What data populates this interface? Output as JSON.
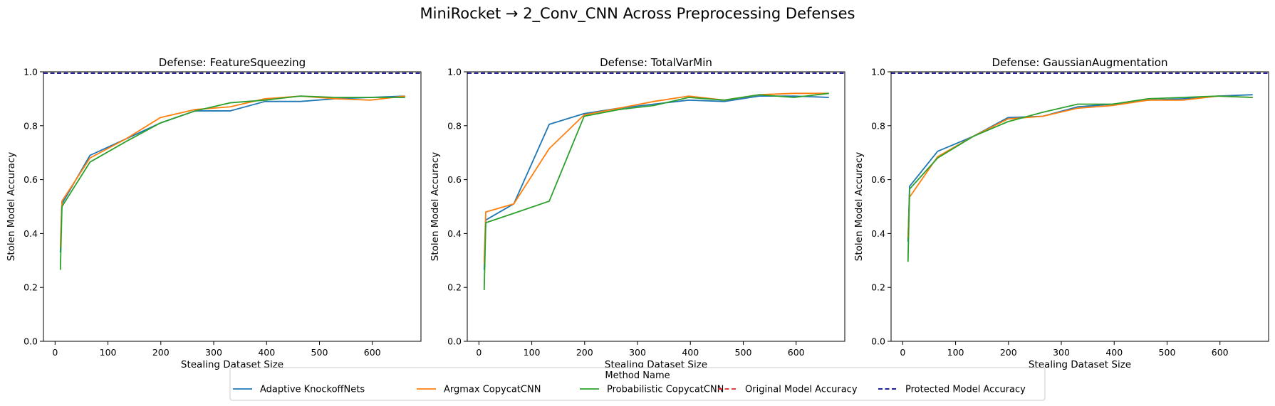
{
  "figure": {
    "suptitle": "MiniRocket → 2_Conv_CNN Across Preprocessing Defenses"
  },
  "colors": {
    "Adaptive KnockoffNets": "#1f77b4",
    "Argmax CopycatCNN": "#ff7f0e",
    "Probabilistic CopycatCNN": "#2ca02c",
    "Original Model Accuracy": "#d62728",
    "Protected Model Accuracy": "#00008b"
  },
  "legend": {
    "title": "Method Name",
    "placement": "bottom-center",
    "entries": [
      {
        "label": "Adaptive KnockoffNets",
        "style": "solid"
      },
      {
        "label": "Argmax CopycatCNN",
        "style": "solid"
      },
      {
        "label": "Probabilistic CopycatCNN",
        "style": "solid"
      },
      {
        "label": "Original Model Accuracy",
        "style": "dashed"
      },
      {
        "label": "Protected Model Accuracy",
        "style": "dashed"
      }
    ]
  },
  "chart_data": [
    {
      "type": "line",
      "title": "Defense: FeatureSqueezing",
      "xlabel": "Stealing Dataset Size",
      "ylabel": "Stolen Model Accuracy",
      "xlim": [
        -22,
        692
      ],
      "ylim": [
        0,
        1.0
      ],
      "xticks": [
        "0",
        "100",
        "200",
        "300",
        "400",
        "500",
        "600"
      ],
      "yticks": [
        "0.0",
        "0.2",
        "0.4",
        "0.6",
        "0.8",
        "1.0"
      ],
      "grid": false,
      "x": [
        10,
        13,
        66,
        133,
        199,
        265,
        331,
        397,
        464,
        530,
        596,
        662
      ],
      "series": [
        {
          "name": "Adaptive KnockoffNets",
          "values": [
            0.33,
            0.51,
            0.69,
            0.75,
            0.81,
            0.855,
            0.855,
            0.89,
            0.89,
            0.9,
            0.905,
            0.91
          ]
        },
        {
          "name": "Argmax CopycatCNN",
          "values": [
            0.35,
            0.52,
            0.68,
            0.75,
            0.83,
            0.86,
            0.87,
            0.9,
            0.91,
            0.9,
            0.895,
            0.91
          ]
        },
        {
          "name": "Probabilistic CopycatCNN",
          "values": [
            0.265,
            0.5,
            0.665,
            0.74,
            0.81,
            0.855,
            0.885,
            0.895,
            0.91,
            0.905,
            0.905,
            0.905
          ]
        }
      ],
      "reference_lines": [
        {
          "name": "Original Model Accuracy",
          "y": 0.995
        },
        {
          "name": "Protected Model Accuracy",
          "y": 0.995
        }
      ]
    },
    {
      "type": "line",
      "title": "Defense: TotalVarMin",
      "xlabel": "Stealing Dataset Size",
      "ylabel": "Stolen Model Accuracy",
      "xlim": [
        -22,
        692
      ],
      "ylim": [
        0,
        1.0
      ],
      "xticks": [
        "0",
        "100",
        "200",
        "300",
        "400",
        "500",
        "600"
      ],
      "yticks": [
        "0.0",
        "0.2",
        "0.4",
        "0.6",
        "0.8",
        "1.0"
      ],
      "grid": false,
      "x": [
        10,
        13,
        66,
        133,
        199,
        265,
        331,
        397,
        464,
        530,
        596,
        662
      ],
      "series": [
        {
          "name": "Adaptive KnockoffNets",
          "values": [
            0.265,
            0.45,
            0.51,
            0.805,
            0.845,
            0.865,
            0.88,
            0.895,
            0.89,
            0.91,
            0.91,
            0.905
          ]
        },
        {
          "name": "Argmax CopycatCNN",
          "values": [
            0.29,
            0.48,
            0.51,
            0.715,
            0.84,
            0.865,
            0.89,
            0.91,
            0.895,
            0.915,
            0.92,
            0.92
          ]
        },
        {
          "name": "Probabilistic CopycatCNN",
          "values": [
            0.19,
            0.44,
            0.475,
            0.52,
            0.835,
            0.86,
            0.875,
            0.905,
            0.895,
            0.915,
            0.905,
            0.92
          ]
        }
      ],
      "reference_lines": [
        {
          "name": "Original Model Accuracy",
          "y": 0.995
        },
        {
          "name": "Protected Model Accuracy",
          "y": 0.995
        }
      ]
    },
    {
      "type": "line",
      "title": "Defense: GaussianAugmentation",
      "xlabel": "Stealing Dataset Size",
      "ylabel": "Stolen Model Accuracy",
      "xlim": [
        -22,
        692
      ],
      "ylim": [
        0,
        1.0
      ],
      "xticks": [
        "0",
        "100",
        "200",
        "300",
        "400",
        "500",
        "600"
      ],
      "yticks": [
        "0.0",
        "0.2",
        "0.4",
        "0.6",
        "0.8",
        "1.0"
      ],
      "grid": false,
      "x": [
        10,
        13,
        66,
        133,
        199,
        265,
        331,
        397,
        464,
        530,
        596,
        662
      ],
      "series": [
        {
          "name": "Adaptive KnockoffNets",
          "values": [
            0.37,
            0.575,
            0.705,
            0.76,
            0.83,
            0.835,
            0.87,
            0.88,
            0.895,
            0.9,
            0.91,
            0.915
          ]
        },
        {
          "name": "Argmax CopycatCNN",
          "values": [
            0.385,
            0.535,
            0.685,
            0.76,
            0.825,
            0.835,
            0.865,
            0.875,
            0.895,
            0.895,
            0.91,
            0.905
          ]
        },
        {
          "name": "Probabilistic CopycatCNN",
          "values": [
            0.295,
            0.565,
            0.68,
            0.76,
            0.815,
            0.85,
            0.88,
            0.88,
            0.9,
            0.905,
            0.91,
            0.905
          ]
        }
      ],
      "reference_lines": [
        {
          "name": "Original Model Accuracy",
          "y": 0.995
        },
        {
          "name": "Protected Model Accuracy",
          "y": 0.995
        }
      ]
    }
  ]
}
